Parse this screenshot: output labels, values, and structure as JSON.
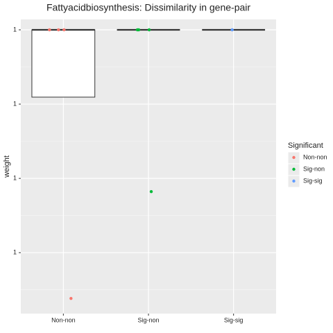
{
  "chart_data": {
    "type": "box",
    "title": "Fattyacidbiosynthesis: Dissimilarity in gene-pair",
    "y_label": "weight",
    "legend_title": "Significant",
    "categories": [
      "Non-non",
      "Sig-non",
      "Sig-sig"
    ],
    "boxes": [
      {
        "min": 0.999547,
        "q1": 0.999547,
        "median": 1,
        "q3": 1,
        "max": 1
      },
      {
        "min": 1,
        "q1": 1,
        "median": 1,
        "q3": 1,
        "max": 1
      },
      {
        "min": 1,
        "q1": 1,
        "median": 1,
        "q3": 1,
        "max": 1
      }
    ],
    "series": [
      {
        "name": "Non-non",
        "color": "#f8766d",
        "values": [
          1,
          1,
          1,
          0.998192
        ]
      },
      {
        "name": "Sig-non",
        "color": "#00ba38",
        "values": [
          1,
          1,
          1,
          0.998911
        ]
      },
      {
        "name": "Sig-sig",
        "color": "#619cff",
        "values": [
          1
        ]
      }
    ],
    "ylim": [
      0.99809,
      1.00007
    ],
    "yticks": [
      {
        "value": 1,
        "label": "1"
      },
      {
        "value": 0.9995,
        "label": "1"
      },
      {
        "value": 0.999,
        "label": "1"
      },
      {
        "value": 0.9985,
        "label": "1"
      }
    ],
    "grid": true,
    "legend": "right"
  }
}
